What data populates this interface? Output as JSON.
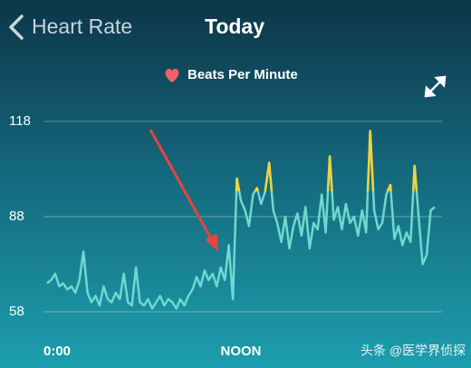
{
  "header": {
    "back_label": "Heart Rate",
    "title": "Today"
  },
  "watermark": "头条 @医学界侦探",
  "chart_data": {
    "type": "line",
    "legend": "Beats Per Minute",
    "legend_icon_color": "#f25f6b",
    "line_color": "#6fd8cf",
    "zone_color": "#f2d33a",
    "zone_min": 96,
    "grid": true,
    "xlim": [
      0,
      24
    ],
    "xticks": [
      {
        "value": 0,
        "label": "0:00"
      },
      {
        "value": 12,
        "label": "NOON"
      }
    ],
    "ylim": [
      58,
      118
    ],
    "yticks": [
      58,
      88,
      118
    ],
    "x": [
      0,
      0.25,
      0.5,
      0.75,
      1,
      1.25,
      1.5,
      1.75,
      2,
      2.25,
      2.5,
      2.75,
      3,
      3.25,
      3.5,
      3.75,
      4,
      4.25,
      4.5,
      4.75,
      5,
      5.25,
      5.5,
      5.75,
      6,
      6.25,
      6.5,
      6.75,
      7,
      7.25,
      7.5,
      7.75,
      8,
      8.25,
      8.5,
      8.75,
      9,
      9.25,
      9.5,
      9.75,
      10,
      10.25,
      10.5,
      10.75,
      11,
      11.25,
      11.5,
      11.75,
      12,
      12.25,
      12.5,
      12.75,
      13,
      13.25,
      13.5,
      13.75,
      14,
      14.25,
      14.5,
      14.75,
      15,
      15.25,
      15.5,
      15.75,
      16,
      16.25,
      16.5,
      16.75,
      17,
      17.25,
      17.5,
      17.75,
      18,
      18.25,
      18.5,
      18.75,
      19,
      19.25,
      19.5,
      19.75,
      20,
      20.25,
      20.5,
      20.75,
      21,
      21.25,
      21.5,
      21.75,
      22,
      22.25,
      22.5,
      22.75,
      23,
      23.25,
      23.5,
      23.75,
      24
    ],
    "series": [
      {
        "name": "Beats Per Minute",
        "values": [
          67,
          68,
          70,
          66,
          67,
          65,
          66,
          64,
          68,
          77,
          64,
          61,
          63,
          60,
          66,
          62,
          61,
          64,
          62,
          70,
          61,
          60,
          72,
          61,
          60,
          62,
          59,
          61,
          63,
          60,
          62,
          61,
          59,
          62,
          60,
          63,
          65,
          69,
          66,
          71,
          68,
          70,
          66,
          72,
          68,
          79,
          62,
          100,
          93,
          90,
          85,
          95,
          97,
          92,
          96,
          105,
          90,
          86,
          80,
          88,
          78,
          85,
          89,
          82,
          91,
          78,
          86,
          84,
          95,
          83,
          107,
          87,
          91,
          84,
          92,
          86,
          88,
          82,
          90,
          83,
          115,
          90,
          84,
          86,
          95,
          98,
          81,
          85,
          79,
          83,
          80,
          104,
          88,
          73,
          76,
          90,
          91
        ]
      }
    ]
  }
}
